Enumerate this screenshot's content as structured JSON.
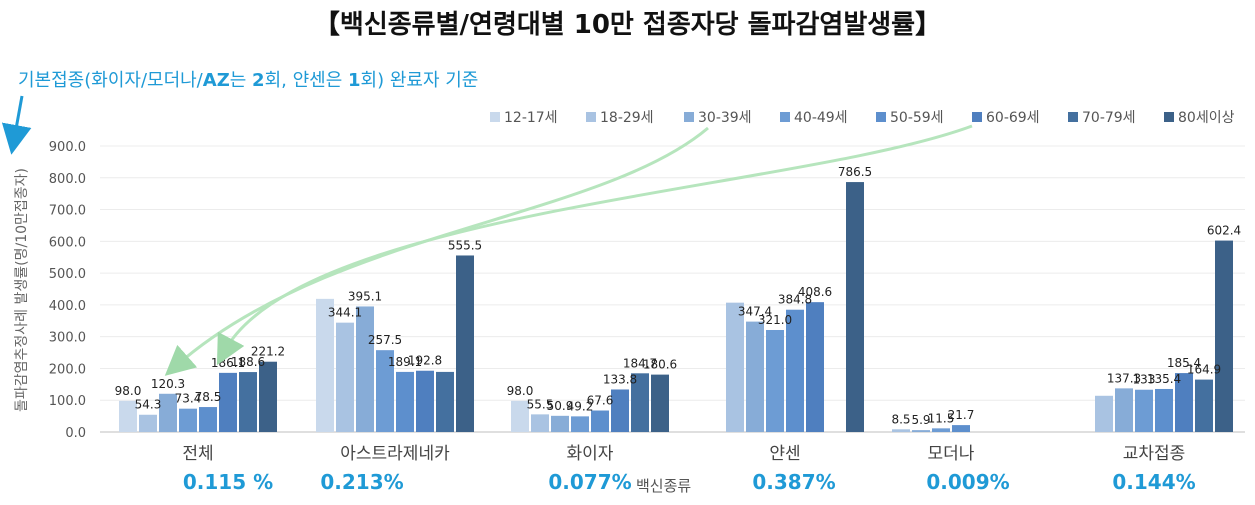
{
  "title": "【백신종류별/연령대별 10만 접종자당 돌파감염발생률】",
  "note": {
    "prefix": "기본접종(화이자/모더나/",
    "az": "AZ",
    "mid1": "는 ",
    "two": "2",
    "mid2": "회, 얀센은 ",
    "one": "1",
    "suffix": "회) 완료자 기준"
  },
  "percentages": [
    "0.115 %",
    "0.213%",
    "0.077%",
    "0.387%",
    "0.009%",
    "0.144%"
  ],
  "chart_data": {
    "type": "bar",
    "title": "【백신종류별/연령대별 10만 접종자당 돌파감염발생률】",
    "xlabel": "백신종류",
    "ylabel": "돌파감염추정사례 발생률(명/10만접종자)",
    "ylim": [
      0,
      900
    ],
    "yticks": [
      0,
      100,
      200,
      300,
      400,
      500,
      600,
      700,
      800,
      900
    ],
    "ytick_labels": [
      "0.0",
      "100.0",
      "200.0",
      "300.0",
      "400.0",
      "500.0",
      "600.0",
      "700.0",
      "800.0",
      "900.0"
    ],
    "legend_position": "top-right",
    "categories": [
      "전체",
      "아스트라제네카",
      "화이자",
      "얀센",
      "모더나",
      "교차접종"
    ],
    "series": [
      {
        "name": "12-17세",
        "color": "#c9d9ec",
        "values": [
          98.0,
          419.0,
          98.0,
          null,
          null,
          null
        ],
        "labels": [
          "98.0",
          "",
          "98.0",
          "",
          "",
          ""
        ]
      },
      {
        "name": "18-29세",
        "color": "#a9c3e2",
        "values": [
          54.3,
          344.1,
          55.5,
          407.0,
          8.5,
          114.0
        ],
        "labels": [
          "54.3",
          "344.1",
          "55.5",
          "",
          "8.5",
          ""
        ]
      },
      {
        "name": "30-39세",
        "color": "#87acd7",
        "values": [
          120.3,
          395.1,
          50.9,
          347.4,
          5.9,
          137.3
        ],
        "labels": [
          "120.3",
          "395.1",
          "50.9",
          "347.4",
          "5.9",
          "137.3"
        ]
      },
      {
        "name": "40-49세",
        "color": "#6d9cd4",
        "values": [
          73.4,
          257.5,
          49.2,
          321.0,
          11.5,
          133.0
        ],
        "labels": [
          "73.4",
          "257.5",
          "49.2",
          "321.0",
          "11.5",
          "133"
        ]
      },
      {
        "name": "50-59세",
        "color": "#5d8fcd",
        "values": [
          78.5,
          189.1,
          67.6,
          384.8,
          21.7,
          135.4
        ],
        "labels": [
          "78.5",
          "189.1",
          "67.6",
          "384.8",
          "21.7",
          "135.4"
        ]
      },
      {
        "name": "60-69세",
        "color": "#4f7fbf",
        "values": [
          186.1,
          192.8,
          133.8,
          408.6,
          null,
          185.4
        ],
        "labels": [
          "186.1",
          "192.8",
          "133.8",
          "408.6",
          "",
          "185.4"
        ]
      },
      {
        "name": "70-79세",
        "color": "#44709f",
        "values": [
          188.6,
          189.1,
          184.7,
          null,
          null,
          164.9
        ],
        "labels": [
          "188.6",
          "",
          "184.7",
          "",
          "",
          "164.9"
        ]
      },
      {
        "name": "80세이상",
        "color": "#3c6188",
        "values": [
          221.2,
          555.5,
          180.6,
          786.5,
          null,
          602.4
        ],
        "labels": [
          "221.2",
          "555.5",
          "180.6",
          "786.5",
          "",
          "602.4"
        ]
      }
    ]
  }
}
